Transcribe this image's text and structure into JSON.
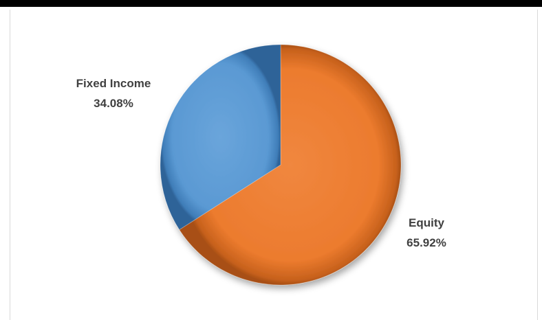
{
  "chart_data": {
    "type": "pie",
    "title": "",
    "slices": [
      {
        "label": "Equity",
        "value": 65.92,
        "display": "65.92%",
        "color": "#ED7D31"
      },
      {
        "label": "Fixed Income",
        "value": 34.08,
        "display": "34.08%",
        "color": "#5B9BD5"
      }
    ],
    "start_angle_deg": 0,
    "direction": "clockwise",
    "legend": "none",
    "style": "3d-shaded"
  }
}
